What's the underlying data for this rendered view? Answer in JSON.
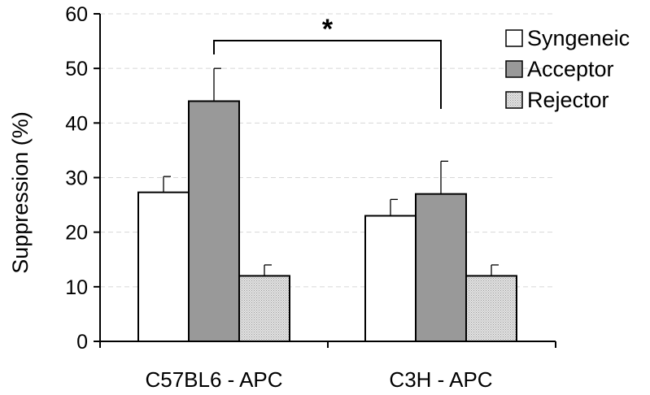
{
  "chart_data": {
    "type": "bar",
    "title": "",
    "xlabel": "",
    "ylabel": "Suppression (%)",
    "ylim": [
      0,
      60
    ],
    "yticks": [
      0,
      10,
      20,
      30,
      40,
      50,
      60
    ],
    "grid": true,
    "legend_position": "top-right",
    "categories": [
      "C57BL6 - APC",
      "C3H - APC"
    ],
    "series": [
      {
        "name": "Syngeneic",
        "values": [
          27.3,
          23.0
        ],
        "errors": [
          2.9,
          3.0
        ],
        "color": "#ffffff"
      },
      {
        "name": "Acceptor",
        "values": [
          44.0,
          27.0
        ],
        "errors": [
          6.0,
          6.0
        ],
        "color": "#999999"
      },
      {
        "name": "Rejector",
        "values": [
          12.0,
          12.0
        ],
        "errors": [
          2.0,
          2.0
        ],
        "color": "#dcdcdc"
      }
    ],
    "annotations": [
      {
        "text": "*",
        "from": "C57BL6 - APC / Acceptor",
        "to": "C3H - APC / Acceptor"
      }
    ]
  }
}
